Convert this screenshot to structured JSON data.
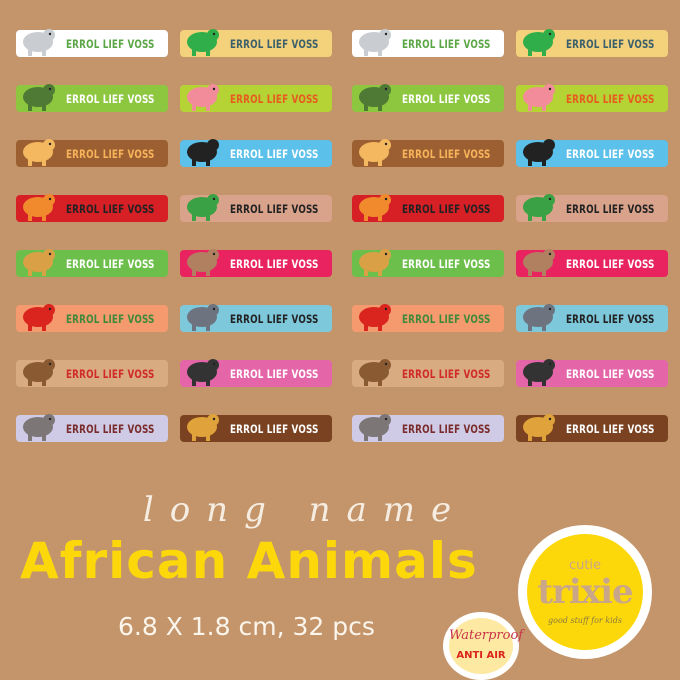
{
  "label_text": "ERROL LIEF VOSS",
  "background_color": "#c4956a",
  "sheet_sets": 2,
  "column_a": [
    {
      "animal": "elephant-icon",
      "bg": "#ffffff",
      "text_color": "#5aa646",
      "animal_color": "#c9ccd0"
    },
    {
      "animal": "crocodile-icon",
      "bg": "#8dc63f",
      "text_color": "#ffffff",
      "animal_color": "#4f7a35"
    },
    {
      "animal": "camel-icon",
      "bg": "#9c5f32",
      "text_color": "#f6b35a",
      "animal_color": "#f4b860"
    },
    {
      "animal": "lion-icon",
      "bg": "#d71f26",
      "text_color": "#222222",
      "animal_color": "#f08a2c"
    },
    {
      "animal": "leopard-icon",
      "bg": "#6cbf4a",
      "text_color": "#ffffff",
      "animal_color": "#d9a046"
    },
    {
      "animal": "parrot-icon",
      "bg": "#f59a6e",
      "text_color": "#3f8a3a",
      "animal_color": "#d9251d"
    },
    {
      "animal": "monkey-icon",
      "bg": "#d8ab80",
      "text_color": "#d12a2a",
      "animal_color": "#8a5a32"
    },
    {
      "animal": "hippo-icon",
      "bg": "#cfcbe6",
      "text_color": "#7a2b2b",
      "animal_color": "#7d7676"
    }
  ],
  "column_b": [
    {
      "animal": "chameleon-icon",
      "bg": "#f4d27b",
      "text_color": "#3b5f6b",
      "animal_color": "#2fae4a"
    },
    {
      "animal": "flamingo-icon",
      "bg": "#b5d334",
      "text_color": "#e85a1f",
      "animal_color": "#f28b9a"
    },
    {
      "animal": "zebra-icon",
      "bg": "#5bc0ea",
      "text_color": "#ffffff",
      "animal_color": "#222222"
    },
    {
      "animal": "snake-icon",
      "bg": "#d9a28a",
      "text_color": "#222222",
      "animal_color": "#3aa244"
    },
    {
      "animal": "hyena-icon",
      "bg": "#e8235f",
      "text_color": "#ffffff",
      "animal_color": "#b08060"
    },
    {
      "animal": "rhino-icon",
      "bg": "#7ec8dc",
      "text_color": "#222222",
      "animal_color": "#6d7480"
    },
    {
      "animal": "ostrich-icon",
      "bg": "#e466a8",
      "text_color": "#ffffff",
      "animal_color": "#333333"
    },
    {
      "animal": "giraffe-icon",
      "bg": "#7a4220",
      "text_color": "#ffffff",
      "animal_color": "#e0a23a"
    }
  ],
  "heading": {
    "script_text": "long name",
    "title": "African Animals",
    "subtitle": "6.8 X 1.8 cm, 32 pcs",
    "title_color": "#fcd80b"
  },
  "badge_waterproof": {
    "line1": "Waterproof",
    "line2": "ANTI AIR"
  },
  "brand_logo": {
    "line1": "cutie",
    "line2": "trixie",
    "tagline": "good stuff for kids"
  }
}
